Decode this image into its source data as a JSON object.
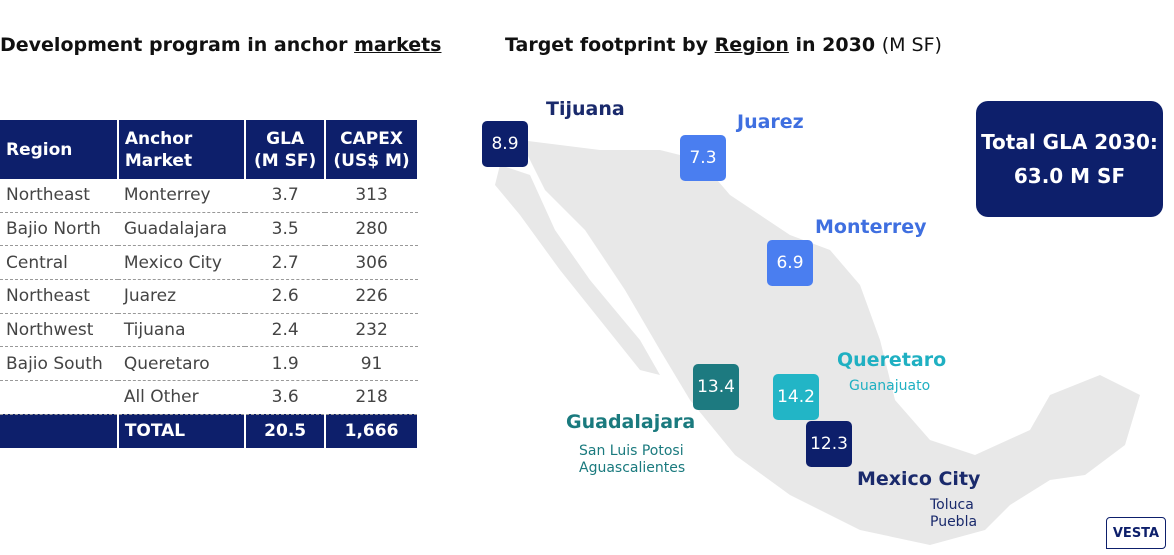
{
  "left": {
    "title": "Development program in anchor",
    "title_link": "markets",
    "table": {
      "headers": [
        "Region",
        "Anchor Market",
        "GLA (M SF)",
        "CAPEX (US$ M)"
      ],
      "rows": [
        {
          "region": "Northeast",
          "market": "Monterrey",
          "gla": "3.7",
          "capex": "313"
        },
        {
          "region": "Bajio North",
          "market": "Guadalajara",
          "gla": "3.5",
          "capex": "280"
        },
        {
          "region": "Central",
          "market": "Mexico City",
          "gla": "2.7",
          "capex": "306"
        },
        {
          "region": "Northeast",
          "market": "Juarez",
          "gla": "2.6",
          "capex": "226"
        },
        {
          "region": "Northwest",
          "market": "Tijuana",
          "gla": "2.4",
          "capex": "232"
        },
        {
          "region": "Bajio South",
          "market": "Queretaro",
          "gla": "1.9",
          "capex": "91"
        },
        {
          "market": "All Other",
          "gla": "3.6",
          "capex": "218"
        }
      ],
      "total": {
        "label": "TOTAL",
        "gla": "20.5",
        "capex": "1,666"
      }
    }
  },
  "right": {
    "title": "Target footprint by",
    "title_link": "Region",
    "title_rest": "in 2030",
    "title_unit": "(M SF)",
    "markers": [
      {
        "label": "Tijuana",
        "value": "8.9"
      },
      {
        "label": "Juarez",
        "value": "7.3"
      },
      {
        "label": "Monterrey",
        "value": "6.9"
      },
      {
        "label": "Queretaro",
        "value": "14.2",
        "sub": [
          "Guanajuato"
        ]
      },
      {
        "label": "Guadalajara",
        "value": "13.4",
        "sub": [
          "San Luis Potosi",
          "Aguascalientes"
        ]
      },
      {
        "label": "Mexico City",
        "value": "12.3",
        "sub": [
          "Toluca",
          "Puebla"
        ]
      }
    ],
    "total_box": {
      "line1": "Total GLA 2030:",
      "line2": "63.0 M SF"
    }
  },
  "logo": "VESTA"
}
